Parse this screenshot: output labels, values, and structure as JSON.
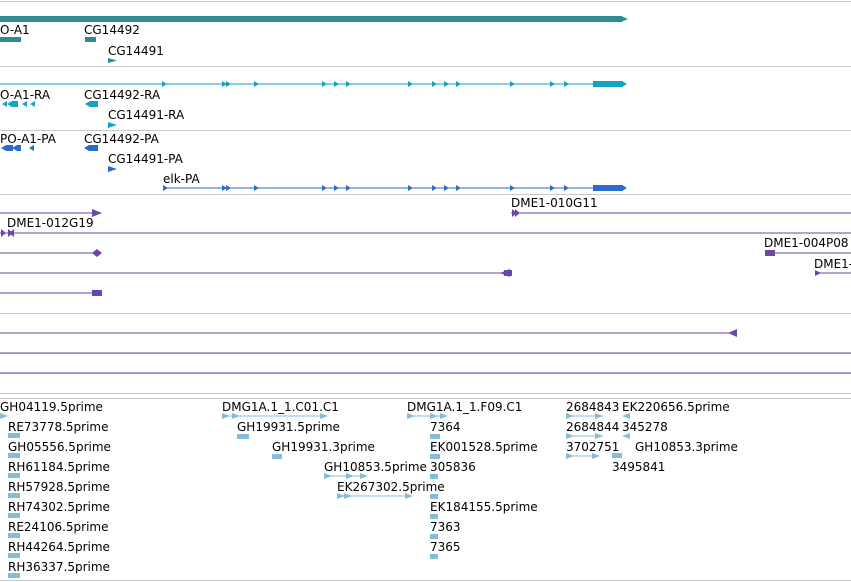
{
  "colors": {
    "gene": "#2f8d8d",
    "mrna": "#14a3c1",
    "cds": "#2a6bcc",
    "primer": "#6b48a5",
    "est": "#86bcd8",
    "separator": "#c9c9c9"
  },
  "tracks": {
    "gene": {
      "labels": [
        "O-A1",
        "CG14492",
        "CG14491"
      ]
    },
    "mrna": {
      "labels": [
        "O-A1-RA",
        "CG14492-RA",
        "CG14491-RA"
      ]
    },
    "cds": {
      "labels": [
        "PO-A1-PA",
        "CG14492-PA",
        "CG14491-PA",
        "elk-PA"
      ]
    },
    "primers": {
      "labels": [
        "DME1-012G19",
        "DME1-010G11",
        "DME1-004P08",
        "DME1-"
      ]
    },
    "est": {
      "labels": [
        "GH04119.5prime",
        "RE73778.5prime",
        "GH05556.5prime",
        "RH61184.5prime",
        "RH57928.5prime",
        "RH74302.5prime",
        "RE24106.5prime",
        "RH44264.5prime",
        "RH36337.5prime",
        "DMG1A.1_1.C01.C1",
        "GH19931.5prime",
        "GH19931.3prime",
        "GH10853.5prime",
        "EK267302.5prime",
        "DMG1A.1_1.F09.C1",
        "7364",
        "EK001528.5prime",
        "305836",
        "EK184155.5prime",
        "7363",
        "7365",
        "2684843",
        "EK220656.5prime",
        "2684844",
        "345278",
        "3702751",
        "GH10853.3prime",
        "3495841"
      ]
    }
  }
}
